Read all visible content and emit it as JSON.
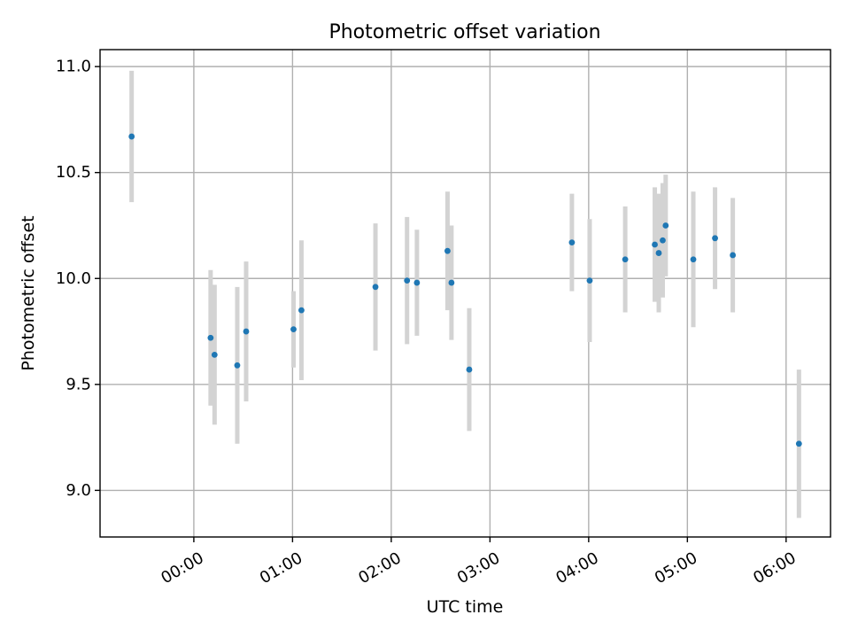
{
  "chart_data": {
    "type": "scatter",
    "title": "Photometric offset variation",
    "xlabel": "UTC time",
    "ylabel": "Photometric offset",
    "x_unit": "hours (UTC)",
    "xlim": [
      -0.95,
      6.45
    ],
    "ylim": [
      8.78,
      11.08
    ],
    "x_ticks": [
      {
        "value": 0,
        "label": "00:00"
      },
      {
        "value": 1,
        "label": "01:00"
      },
      {
        "value": 2,
        "label": "02:00"
      },
      {
        "value": 3,
        "label": "03:00"
      },
      {
        "value": 4,
        "label": "04:00"
      },
      {
        "value": 5,
        "label": "05:00"
      },
      {
        "value": 6,
        "label": "06:00"
      }
    ],
    "y_ticks": [
      {
        "value": 9.0,
        "label": "9.0"
      },
      {
        "value": 9.5,
        "label": "9.5"
      },
      {
        "value": 10.0,
        "label": "10.0"
      },
      {
        "value": 10.5,
        "label": "10.5"
      },
      {
        "value": 11.0,
        "label": "11.0"
      }
    ],
    "grid": true,
    "colors": {
      "point": "#1f77b4",
      "errorbar": "#d3d3d3"
    },
    "points": [
      {
        "x": -0.63,
        "y": 10.67,
        "err": 0.31
      },
      {
        "x": 0.17,
        "y": 9.72,
        "err": 0.32
      },
      {
        "x": 0.21,
        "y": 9.64,
        "err": 0.33
      },
      {
        "x": 0.44,
        "y": 9.59,
        "err": 0.37
      },
      {
        "x": 0.53,
        "y": 9.75,
        "err": 0.33
      },
      {
        "x": 1.01,
        "y": 9.76,
        "err": 0.18
      },
      {
        "x": 1.09,
        "y": 9.85,
        "err": 0.33
      },
      {
        "x": 1.84,
        "y": 9.96,
        "err": 0.3
      },
      {
        "x": 2.16,
        "y": 9.99,
        "err": 0.3
      },
      {
        "x": 2.26,
        "y": 9.98,
        "err": 0.25
      },
      {
        "x": 2.57,
        "y": 10.13,
        "err": 0.28
      },
      {
        "x": 2.61,
        "y": 9.98,
        "err": 0.27
      },
      {
        "x": 2.79,
        "y": 9.57,
        "err": 0.29
      },
      {
        "x": 3.83,
        "y": 10.17,
        "err": 0.23
      },
      {
        "x": 4.01,
        "y": 9.99,
        "err": 0.29
      },
      {
        "x": 4.37,
        "y": 10.09,
        "err": 0.25
      },
      {
        "x": 4.67,
        "y": 10.16,
        "err": 0.27
      },
      {
        "x": 4.71,
        "y": 10.12,
        "err": 0.28
      },
      {
        "x": 4.75,
        "y": 10.18,
        "err": 0.27
      },
      {
        "x": 4.78,
        "y": 10.25,
        "err": 0.24
      },
      {
        "x": 5.06,
        "y": 10.09,
        "err": 0.32
      },
      {
        "x": 5.28,
        "y": 10.19,
        "err": 0.24
      },
      {
        "x": 5.46,
        "y": 10.11,
        "err": 0.27
      },
      {
        "x": 6.13,
        "y": 9.22,
        "err": 0.35
      }
    ]
  }
}
